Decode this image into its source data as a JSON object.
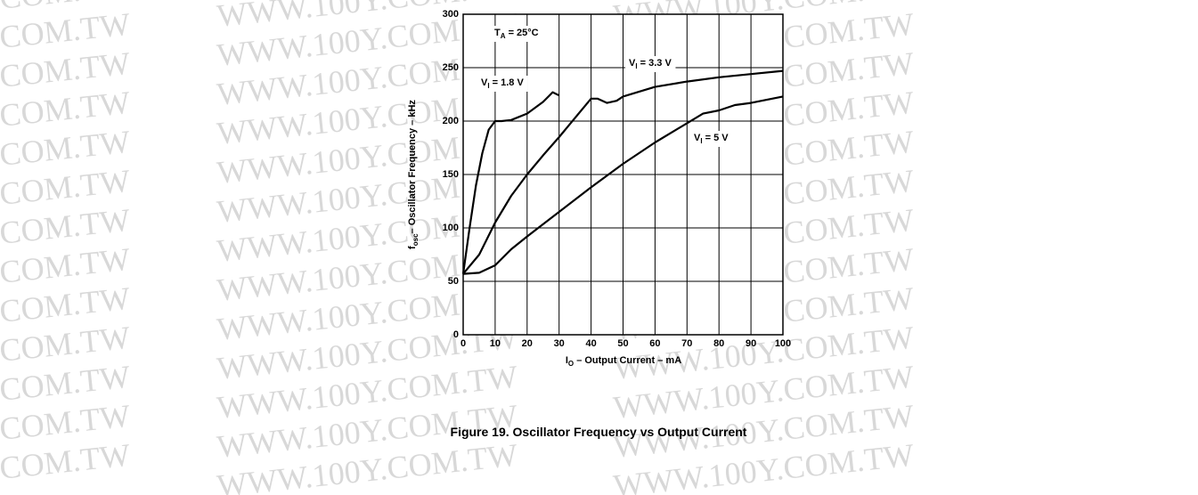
{
  "watermark": "WWW.100Y.COM.TW",
  "caption": "Figure 19. Oscillator Frequency vs Output Current",
  "chart_data": {
    "type": "line",
    "y_label": {
      "text": "f",
      "sub": "osc",
      "after": "– Oscillator Frequency – kHz"
    },
    "x_label": {
      "text": "I",
      "sub": "O",
      "after": " – Output Current – mA"
    },
    "annotation": {
      "text": "T",
      "sub": "A",
      "after": " = 25°C"
    },
    "xlim": [
      0,
      100
    ],
    "xticks": [
      0,
      10,
      20,
      30,
      40,
      50,
      60,
      70,
      80,
      90,
      100
    ],
    "ylim": [
      0,
      300
    ],
    "yticks": [
      0,
      50,
      100,
      150,
      200,
      250,
      300
    ],
    "grid": true,
    "series": [
      {
        "name": {
          "text": "V",
          "sub": "I",
          "after": " = 1.8 V"
        },
        "color": "#000000",
        "x": [
          0,
          2,
          4,
          6,
          8,
          10,
          12,
          15,
          20,
          25,
          28,
          30
        ],
        "values": [
          57,
          100,
          140,
          170,
          192,
          200,
          200,
          201,
          207,
          218,
          227,
          224
        ]
      },
      {
        "name": {
          "text": "V",
          "sub": "I",
          "after": " = 3.3 V"
        },
        "color": "#000000",
        "x": [
          0,
          5,
          10,
          15,
          20,
          25,
          30,
          35,
          40,
          42,
          45,
          48,
          50,
          60,
          70,
          80,
          90,
          100
        ],
        "values": [
          57,
          75,
          105,
          130,
          150,
          168,
          185,
          203,
          221,
          221,
          217,
          219,
          223,
          232,
          237,
          241,
          244,
          247
        ]
      },
      {
        "name": {
          "text": "V",
          "sub": "I",
          "after": " = 5 V"
        },
        "color": "#000000",
        "x": [
          0,
          5,
          10,
          15,
          20,
          30,
          40,
          50,
          60,
          70,
          75,
          80,
          85,
          90,
          100
        ],
        "values": [
          57,
          58,
          65,
          80,
          92,
          115,
          138,
          160,
          180,
          198,
          207,
          210,
          215,
          217,
          223
        ]
      }
    ]
  }
}
